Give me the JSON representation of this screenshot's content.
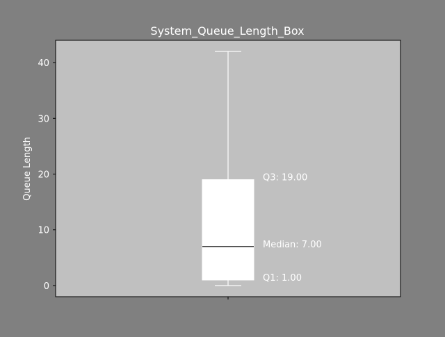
{
  "colors": {
    "figure_bg": "#808080",
    "axes_bg": "#c0c0c0",
    "text": "#ffffff",
    "box": "#ffffff",
    "median_line": "#000000",
    "spine": "#000000"
  },
  "chart_data": {
    "type": "box",
    "title": "System_Queue_Length_Box",
    "xlabel": "",
    "ylabel": "Queue Length",
    "ylim": [
      -2,
      44
    ],
    "yticks": [
      0,
      10,
      20,
      30,
      40
    ],
    "grid": false,
    "legend": "none",
    "box": {
      "min": 0,
      "q1": 1,
      "median": 7,
      "q3": 19,
      "max": 42
    },
    "annotations": [
      {
        "label": "Q3: 19.00",
        "value": 19
      },
      {
        "label": "Median: 7.00",
        "value": 7
      },
      {
        "label": "Q1: 1.00",
        "value": 1
      }
    ]
  }
}
